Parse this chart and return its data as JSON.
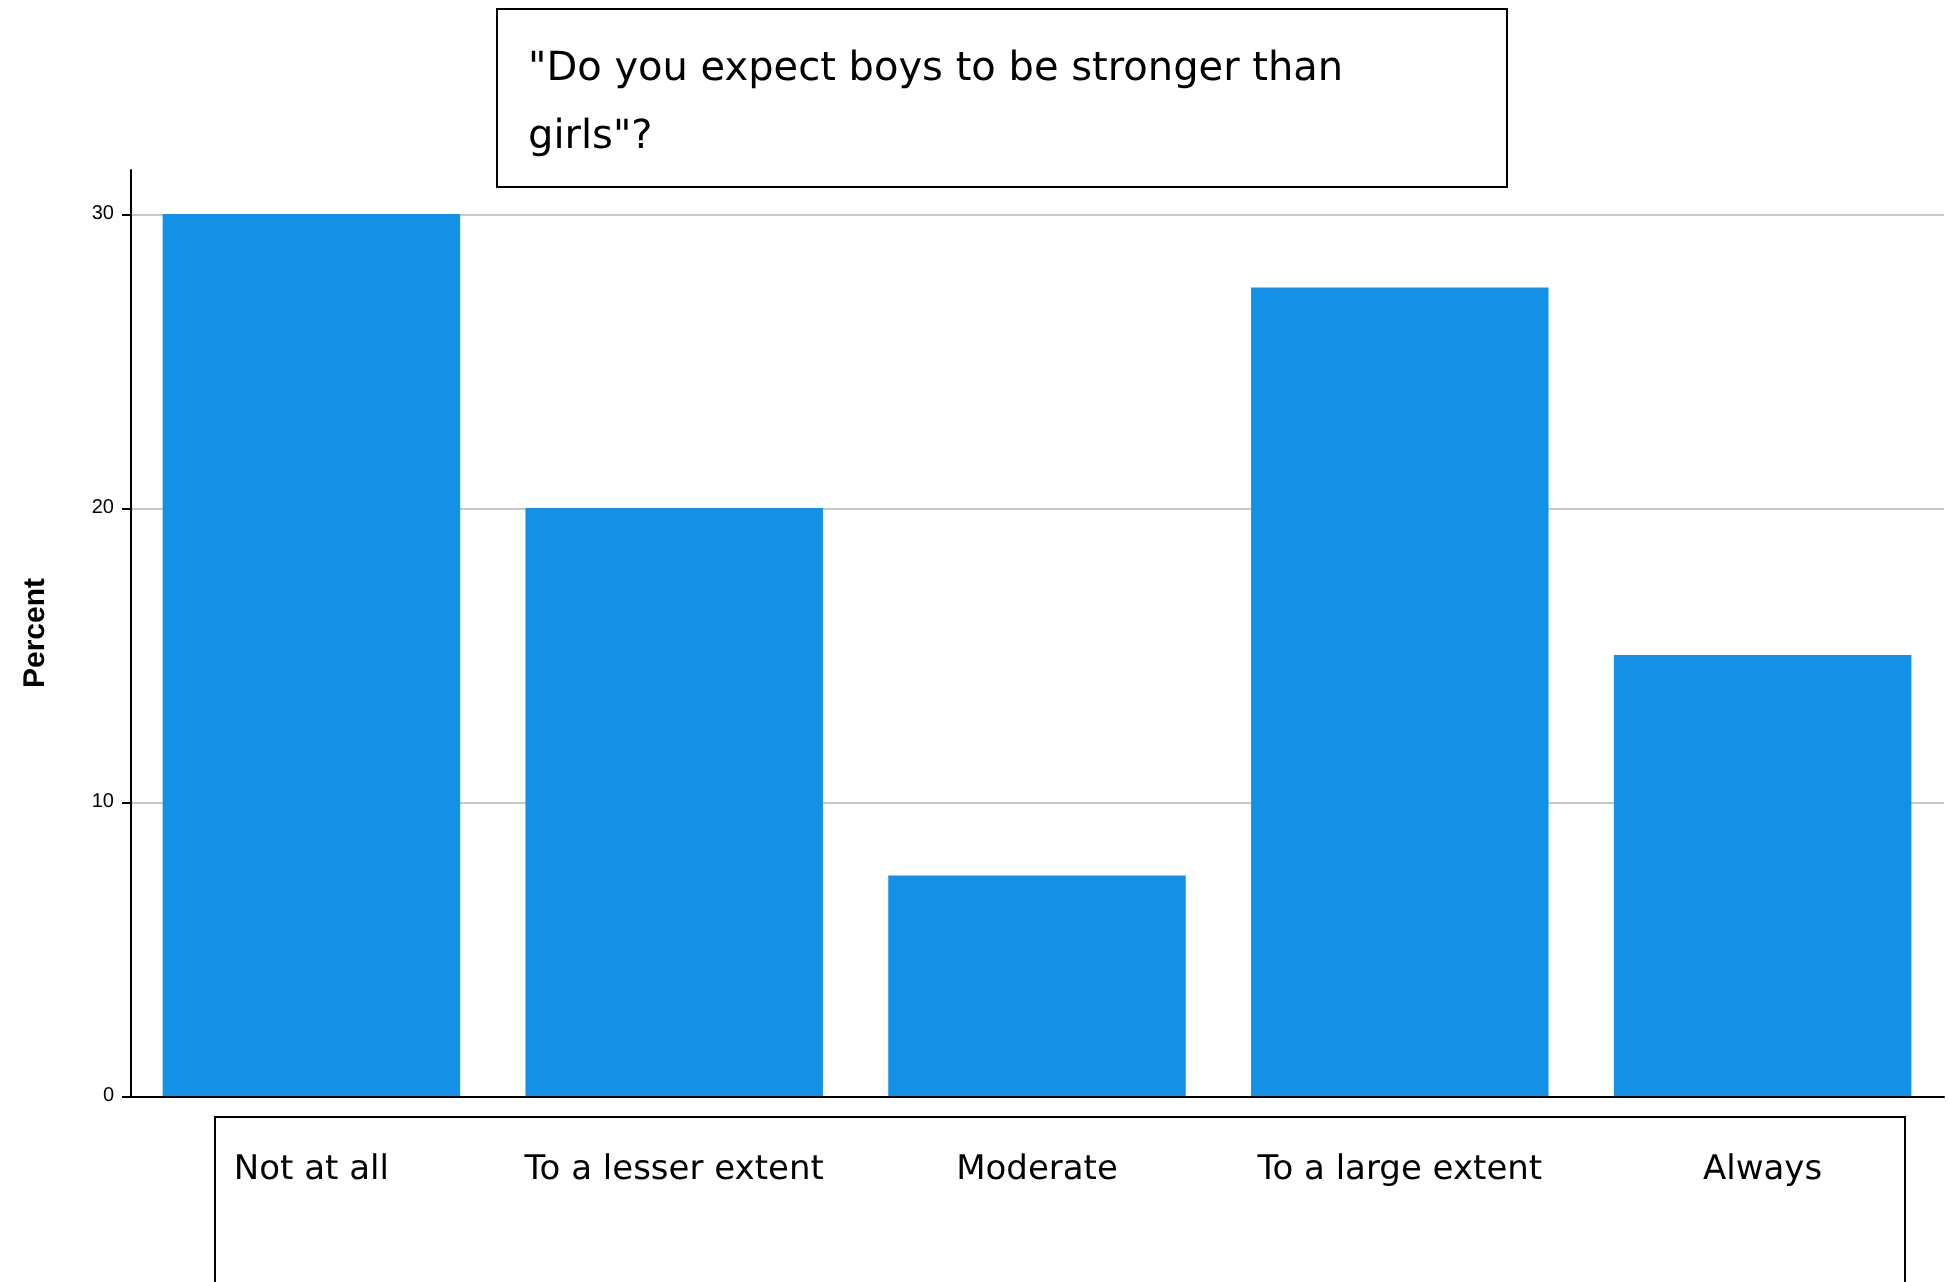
{
  "chart_data": {
    "type": "bar",
    "title": "\"Do you expect boys to be stronger than girls\"?",
    "ylabel": "Percent",
    "categories": [
      "Not at all",
      "To a lesser extent",
      "Moderate",
      "To a large extent",
      "Always"
    ],
    "values": [
      30,
      20,
      7.5,
      27.5,
      15
    ],
    "color": "#1391e6",
    "ylim": [
      0,
      31.5
    ],
    "yticks": [
      0,
      10,
      20,
      30
    ],
    "grid": "y"
  }
}
